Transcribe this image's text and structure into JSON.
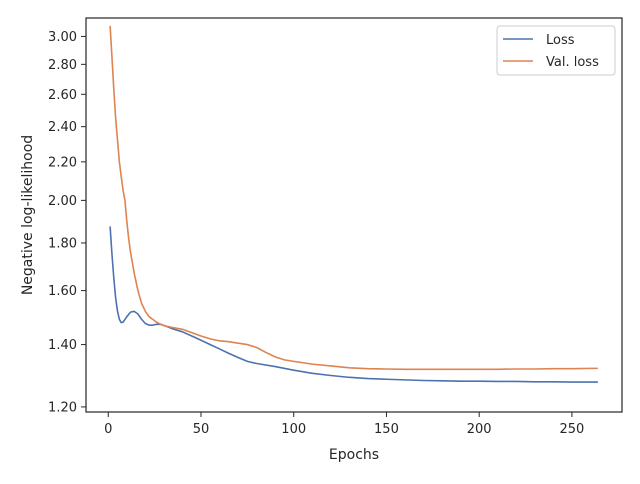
{
  "chart_data": {
    "type": "line",
    "title": "",
    "xlabel": "Epochs",
    "ylabel": "Negative log-likelihood",
    "xlim": [
      -12,
      277
    ],
    "ylim": [
      1.185,
      3.14
    ],
    "y_scale": "log",
    "grid": false,
    "legend_position": "top-right",
    "x_ticks": [
      0,
      50,
      100,
      150,
      200,
      250
    ],
    "x_tick_labels": [
      "0",
      "50",
      "100",
      "150",
      "200",
      "250"
    ],
    "y_ticks": [
      1.2,
      1.4,
      1.6,
      1.8,
      2.0,
      2.2,
      2.4,
      2.6,
      2.8,
      3.0
    ],
    "y_tick_labels": [
      "1.20",
      "1.40",
      "1.60",
      "1.80",
      "2.00",
      "2.20",
      "2.40",
      "2.60",
      "2.80",
      "3.00"
    ],
    "series": [
      {
        "name": "Loss",
        "color": "#4c72b0",
        "x": [
          1,
          2,
          3,
          4,
          5,
          6,
          7,
          8,
          9,
          10,
          12,
          14,
          16,
          18,
          20,
          22,
          24,
          26,
          28,
          30,
          35,
          40,
          45,
          50,
          55,
          60,
          65,
          70,
          75,
          80,
          90,
          100,
          110,
          120,
          130,
          140,
          150,
          160,
          170,
          180,
          190,
          200,
          210,
          220,
          230,
          240,
          250,
          260,
          264
        ],
        "y": [
          1.875,
          1.75,
          1.65,
          1.57,
          1.52,
          1.49,
          1.478,
          1.48,
          1.49,
          1.5,
          1.517,
          1.52,
          1.51,
          1.49,
          1.475,
          1.469,
          1.469,
          1.472,
          1.472,
          1.468,
          1.455,
          1.445,
          1.43,
          1.415,
          1.4,
          1.385,
          1.37,
          1.356,
          1.343,
          1.336,
          1.326,
          1.314,
          1.304,
          1.297,
          1.291,
          1.287,
          1.285,
          1.283,
          1.281,
          1.28,
          1.279,
          1.279,
          1.278,
          1.278,
          1.277,
          1.277,
          1.276,
          1.276,
          1.276
        ]
      },
      {
        "name": "Val. loss",
        "color": "#dd8452",
        "x": [
          1,
          2,
          3,
          4,
          5,
          6,
          7,
          8,
          9,
          10,
          11,
          12,
          14,
          16,
          18,
          20,
          22,
          24,
          26,
          28,
          30,
          35,
          40,
          45,
          50,
          55,
          60,
          65,
          70,
          75,
          80,
          85,
          90,
          95,
          100,
          110,
          120,
          130,
          140,
          150,
          160,
          170,
          180,
          190,
          200,
          210,
          220,
          230,
          240,
          250,
          260,
          264
        ],
        "y": [
          3.08,
          2.85,
          2.63,
          2.45,
          2.32,
          2.2,
          2.12,
          2.05,
          2.0,
          1.9,
          1.82,
          1.76,
          1.67,
          1.6,
          1.55,
          1.52,
          1.5,
          1.49,
          1.48,
          1.473,
          1.467,
          1.46,
          1.454,
          1.442,
          1.43,
          1.42,
          1.413,
          1.41,
          1.405,
          1.4,
          1.39,
          1.373,
          1.358,
          1.348,
          1.343,
          1.334,
          1.328,
          1.322,
          1.319,
          1.318,
          1.317,
          1.317,
          1.317,
          1.317,
          1.317,
          1.317,
          1.318,
          1.318,
          1.319,
          1.319,
          1.32,
          1.32
        ]
      }
    ]
  }
}
